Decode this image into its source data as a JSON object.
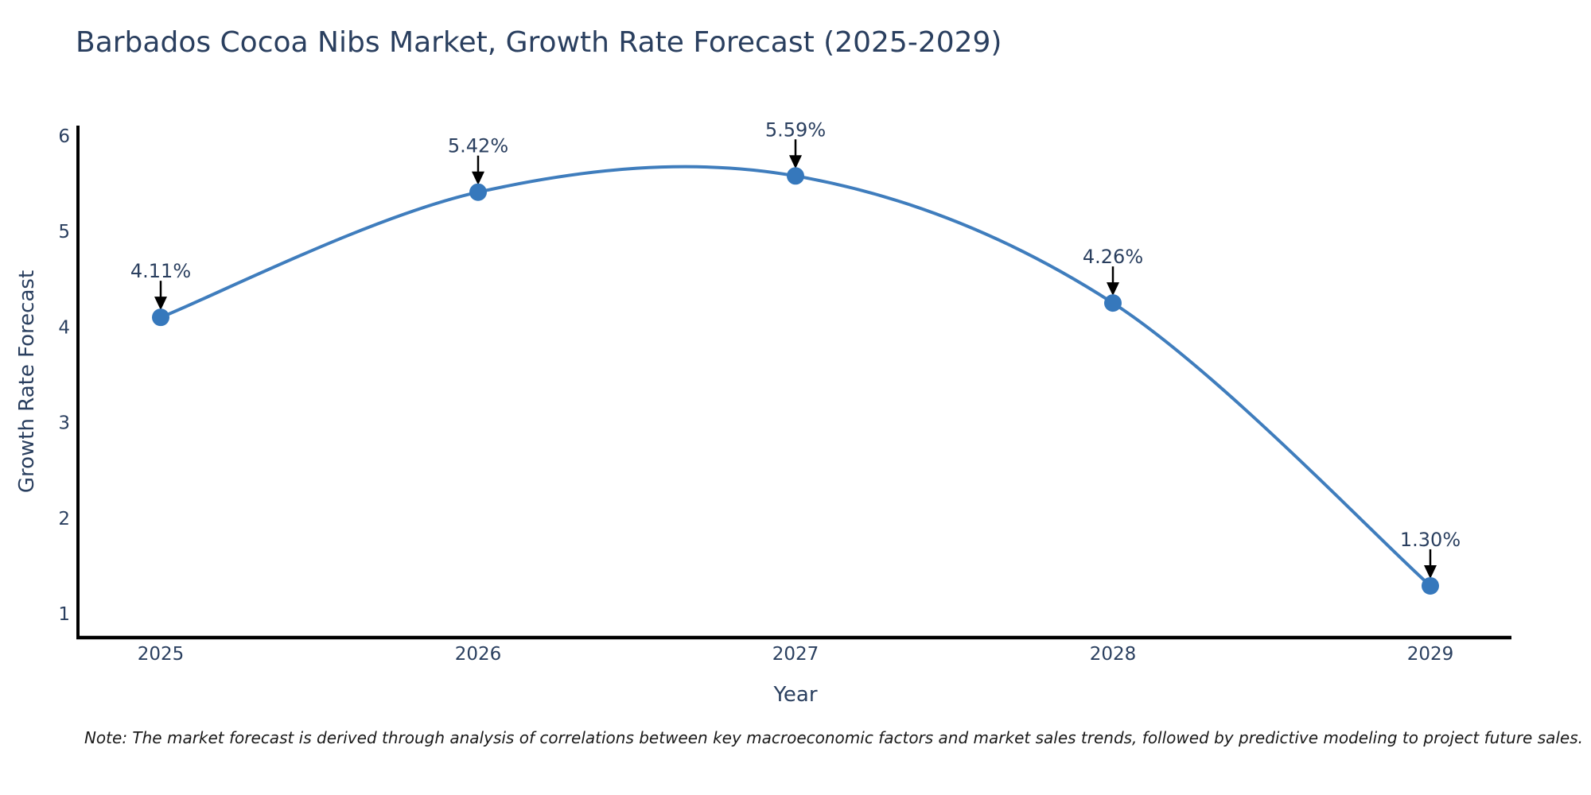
{
  "title": "Barbados Cocoa Nibs Market, Growth Rate Forecast (2025-2029)",
  "note": "Note: The market forecast is derived through analysis of correlations between key macroeconomic factors and market sales trends, followed by predictive modeling to project future sales.",
  "colors": {
    "line": "#3f7dbd",
    "marker": "#3678bc",
    "axis_line": "#000000",
    "text": "#2a3f5f",
    "annotation_arrow": "#000000",
    "note_text": "#1a1a1a",
    "background": "#ffffff"
  },
  "chart_data": {
    "type": "line",
    "title": "Barbados Cocoa Nibs Market, Growth Rate Forecast (2025-2029)",
    "x": [
      2025,
      2026,
      2027,
      2028,
      2029
    ],
    "categories": [
      "2025",
      "2026",
      "2027",
      "2028",
      "2029"
    ],
    "series": [
      {
        "name": "Growth Rate Forecast",
        "values": [
          4.11,
          5.42,
          5.59,
          4.26,
          1.3
        ]
      }
    ],
    "data_labels": [
      "4.11%",
      "5.42%",
      "5.59%",
      "4.26%",
      "1.30%"
    ],
    "xlabel": "Year",
    "ylabel": "Growth Rate Forecast",
    "yticks": [
      1,
      2,
      3,
      4,
      5,
      6
    ],
    "ylim": [
      0.76,
      6.12
    ],
    "xlim": [
      2024.74,
      2029.26
    ],
    "grid": false,
    "legend_position": "none",
    "line_shape": "spline",
    "marker_size": 22
  }
}
